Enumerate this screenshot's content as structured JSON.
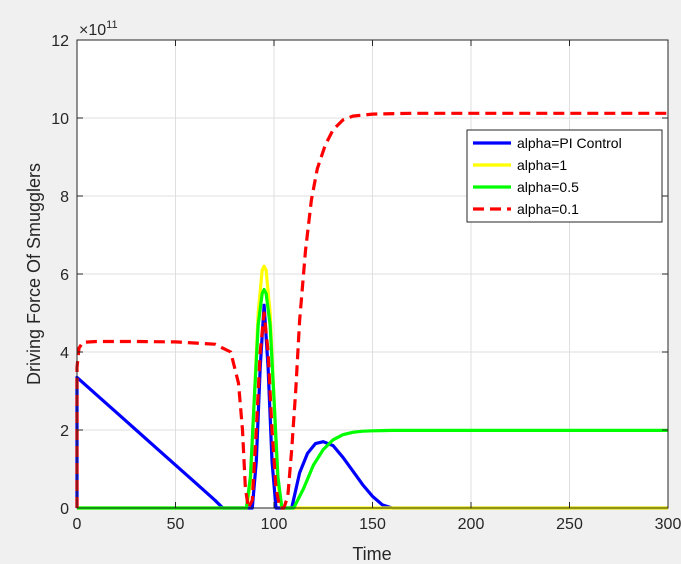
{
  "chart_data": {
    "type": "line",
    "title": "",
    "xlabel": "Time",
    "ylabel": "Driving Force Of Smugglers",
    "y_exponent_label": "×10",
    "y_exponent_power": "11",
    "xlim": [
      0,
      300
    ],
    "ylim": [
      0,
      12
    ],
    "x_ticks": [
      0,
      50,
      100,
      150,
      200,
      250,
      300
    ],
    "y_ticks": [
      0,
      2,
      4,
      6,
      8,
      10,
      12
    ],
    "x_tick_labels": [
      "0",
      "50",
      "100",
      "150",
      "200",
      "250",
      "300"
    ],
    "y_tick_labels": [
      "0",
      "2",
      "4",
      "6",
      "8",
      "10",
      "12"
    ],
    "grid": true,
    "legend_position": "top-right",
    "series": [
      {
        "name": "alpha=PI Control",
        "color": "#0000ff",
        "dash": "solid",
        "points": [
          [
            0,
            0
          ],
          [
            0,
            3.35
          ],
          [
            10,
            2.9
          ],
          [
            20,
            2.45
          ],
          [
            30,
            2.0
          ],
          [
            40,
            1.55
          ],
          [
            50,
            1.1
          ],
          [
            60,
            0.65
          ],
          [
            70,
            0.2
          ],
          [
            74,
            0.0
          ],
          [
            89,
            0.0
          ],
          [
            91,
            1.2
          ],
          [
            93,
            3.6
          ],
          [
            95,
            5.2
          ],
          [
            97,
            3.6
          ],
          [
            99,
            1.2
          ],
          [
            101,
            0.0
          ],
          [
            109,
            0.0
          ],
          [
            113,
            0.9
          ],
          [
            117,
            1.4
          ],
          [
            121,
            1.65
          ],
          [
            125,
            1.7
          ],
          [
            130,
            1.6
          ],
          [
            135,
            1.3
          ],
          [
            140,
            0.95
          ],
          [
            145,
            0.6
          ],
          [
            150,
            0.3
          ],
          [
            155,
            0.08
          ],
          [
            160,
            0.0
          ],
          [
            300,
            0.0
          ]
        ]
      },
      {
        "name": "alpha=1",
        "color": "#ffff00",
        "dash": "solid",
        "points": [
          [
            0,
            0
          ],
          [
            86,
            0.0
          ],
          [
            88,
            0.6
          ],
          [
            90,
            2.8
          ],
          [
            92,
            5.0
          ],
          [
            94,
            6.1
          ],
          [
            95,
            6.2
          ],
          [
            96,
            6.1
          ],
          [
            98,
            5.0
          ],
          [
            100,
            2.8
          ],
          [
            102,
            0.6
          ],
          [
            104,
            0.0
          ],
          [
            300,
            0.0
          ]
        ]
      },
      {
        "name": "alpha=0.5",
        "color": "#00ff00",
        "dash": "solid",
        "points": [
          [
            0,
            0
          ],
          [
            86,
            0.0
          ],
          [
            88,
            0.8
          ],
          [
            90,
            2.8
          ],
          [
            92,
            4.7
          ],
          [
            94,
            5.5
          ],
          [
            95,
            5.6
          ],
          [
            96,
            5.5
          ],
          [
            98,
            4.7
          ],
          [
            100,
            2.8
          ],
          [
            102,
            0.8
          ],
          [
            104,
            0.0
          ],
          [
            110,
            0.0
          ],
          [
            115,
            0.5
          ],
          [
            120,
            1.1
          ],
          [
            125,
            1.5
          ],
          [
            130,
            1.75
          ],
          [
            135,
            1.88
          ],
          [
            140,
            1.94
          ],
          [
            145,
            1.97
          ],
          [
            150,
            1.98
          ],
          [
            160,
            1.99
          ],
          [
            300,
            1.99
          ]
        ]
      },
      {
        "name": "alpha=0.1",
        "color": "#ff0000",
        "dash": "dashed",
        "points": [
          [
            0,
            0
          ],
          [
            0,
            3.6
          ],
          [
            1,
            4.1
          ],
          [
            3,
            4.25
          ],
          [
            10,
            4.27
          ],
          [
            30,
            4.27
          ],
          [
            50,
            4.26
          ],
          [
            70,
            4.2
          ],
          [
            78,
            4.0
          ],
          [
            82,
            3.2
          ],
          [
            84,
            2.0
          ],
          [
            85.5,
            0.5
          ],
          [
            87,
            0.0
          ],
          [
            89,
            0.2
          ],
          [
            91,
            2.0
          ],
          [
            93,
            4.0
          ],
          [
            95,
            5.0
          ],
          [
            97,
            4.0
          ],
          [
            99,
            2.0
          ],
          [
            101,
            0.5
          ],
          [
            103,
            0.0
          ],
          [
            105,
            0.0
          ],
          [
            107,
            0.3
          ],
          [
            109,
            1.5
          ],
          [
            111,
            3.0
          ],
          [
            113,
            4.8
          ],
          [
            116,
            6.6
          ],
          [
            119,
            7.9
          ],
          [
            122,
            8.7
          ],
          [
            126,
            9.3
          ],
          [
            130,
            9.7
          ],
          [
            135,
            9.95
          ],
          [
            140,
            10.05
          ],
          [
            150,
            10.1
          ],
          [
            170,
            10.12
          ],
          [
            300,
            10.12
          ]
        ]
      }
    ]
  }
}
